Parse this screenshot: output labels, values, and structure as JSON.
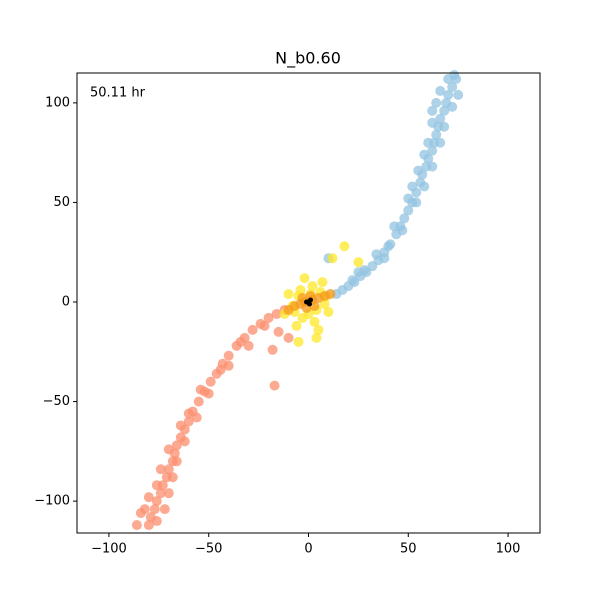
{
  "chart_data": {
    "type": "scatter",
    "title": "N_b0.60",
    "annotation": "50.11 hr",
    "xlim": [
      -116,
      116
    ],
    "ylim": [
      -116,
      115
    ],
    "xticks": [
      {
        "value": -100,
        "label": "−100"
      },
      {
        "value": -50,
        "label": "−50"
      },
      0,
      50,
      100
    ],
    "yticks": [
      {
        "value": -100,
        "label": "−100"
      },
      {
        "value": -50,
        "label": "−50"
      },
      0,
      50,
      100
    ],
    "series": [
      {
        "color": "#fc8d6f",
        "x": [
          -12,
          -16,
          -20,
          -24,
          -28,
          -32,
          -36,
          -40,
          -43,
          -46,
          -49,
          -52,
          -55,
          -58,
          -60,
          -62,
          -64,
          -66,
          -67,
          -68,
          -70,
          -71,
          -73,
          -74,
          -76,
          -77,
          -79,
          -80,
          -50,
          -54,
          -60,
          -56,
          -64,
          -62,
          -70,
          -66,
          -74,
          -68,
          -76,
          -70,
          -80,
          -72,
          -82,
          -76,
          -86,
          -84,
          -44,
          -40,
          -34,
          -30,
          -22,
          -15,
          -18,
          -10,
          -17
        ],
        "y": [
          -4,
          -6,
          -8,
          -11,
          -14,
          -18,
          -22,
          -27,
          -31,
          -36,
          -40,
          -45,
          -50,
          -55,
          -60,
          -64,
          -68,
          -72,
          -76,
          -80,
          -84,
          -88,
          -92,
          -96,
          -100,
          -104,
          -108,
          -112,
          -46,
          -44,
          -56,
          -58,
          -62,
          -70,
          -74,
          -80,
          -84,
          -88,
          -92,
          -96,
          -98,
          -104,
          -104,
          -110,
          -112,
          -106,
          -34,
          -32,
          -20,
          -22,
          -12,
          -15,
          -24,
          -18,
          -42
        ]
      },
      {
        "color": "#93c4e2",
        "x": [
          14,
          17,
          20,
          23,
          26,
          29,
          32,
          35,
          38,
          41,
          44,
          46,
          48,
          50,
          52,
          54,
          56,
          57,
          59,
          60,
          62,
          63,
          64,
          65,
          66,
          68,
          69,
          70,
          72,
          74,
          50,
          54,
          58,
          55,
          62,
          60,
          66,
          62,
          68,
          64,
          72,
          66,
          75,
          70,
          62,
          58,
          52,
          43,
          47,
          34,
          38,
          28,
          22,
          73,
          10,
          25,
          40
        ],
        "y": [
          4,
          6,
          8,
          10,
          13,
          15,
          18,
          21,
          25,
          29,
          34,
          38,
          42,
          46,
          50,
          55,
          60,
          64,
          68,
          72,
          76,
          80,
          84,
          88,
          92,
          96,
          100,
          104,
          108,
          112,
          52,
          50,
          58,
          66,
          68,
          80,
          80,
          90,
          88,
          100,
          98,
          106,
          104,
          112,
          96,
          74,
          58,
          38,
          36,
          24,
          22,
          16,
          11,
          114,
          22,
          15,
          28
        ]
      },
      {
        "color": "#fde725",
        "x": [
          -5,
          4,
          -8,
          6,
          2,
          -3,
          8,
          -10,
          3,
          -6,
          7,
          -2,
          10,
          -12,
          5,
          0,
          -4,
          9,
          -7,
          1,
          18,
          12,
          -5,
          4,
          25
        ],
        "y": [
          3,
          -4,
          -2,
          5,
          8,
          -8,
          -1,
          4,
          -10,
          -12,
          10,
          12,
          -5,
          -6,
          -14,
          -6,
          6,
          3,
          -5,
          4,
          28,
          22,
          -20,
          -18,
          20
        ]
      },
      {
        "color": "#f59a1c",
        "x": [
          -10,
          -7,
          -4,
          -2,
          2,
          5,
          8,
          11,
          -3,
          3,
          -1,
          1
        ],
        "y": [
          -4,
          -2,
          -1,
          0,
          1,
          2,
          3,
          4,
          2,
          -2,
          -3,
          3
        ]
      },
      {
        "color": "#000000",
        "x": [
          0,
          1,
          -1,
          0.5
        ],
        "y": [
          0,
          1,
          0,
          -1
        ]
      }
    ]
  }
}
